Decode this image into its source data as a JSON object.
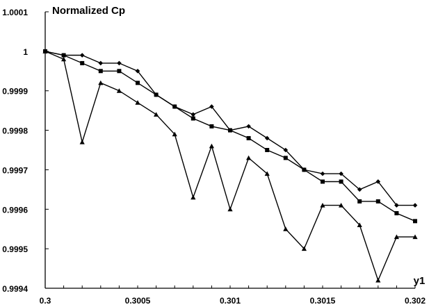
{
  "chart_data": {
    "type": "line",
    "title": "Normalized Cp",
    "xlabel": "y1",
    "ylabel": "",
    "xlim": [
      0.3,
      0.302
    ],
    "ylim": [
      0.9994,
      1.0001
    ],
    "x_ticks": [
      "0.3",
      "0.3005",
      "0.301",
      "0.3015",
      "0.302"
    ],
    "y_ticks": [
      "0.9994",
      "0.9995",
      "0.9996",
      "0.9997",
      "0.9998",
      "0.9999",
      "1",
      "1.0001"
    ],
    "grid": false,
    "legend": "none",
    "x": [
      0.3,
      0.3001,
      0.3002,
      0.3003,
      0.3004,
      0.3005,
      0.3006,
      0.3007,
      0.3008,
      0.3009,
      0.301,
      0.3011,
      0.3012,
      0.3013,
      0.3014,
      0.3015,
      0.3016,
      0.3017,
      0.3018,
      0.3019,
      0.302
    ],
    "series": [
      {
        "marker": "diamond",
        "values": [
          1.0,
          0.99999,
          0.99999,
          0.99997,
          0.99997,
          0.99995,
          0.99989,
          0.99986,
          0.99984,
          0.99986,
          0.9998,
          0.99981,
          0.99978,
          0.99975,
          0.9997,
          0.99969,
          0.99969,
          0.99965,
          0.99967,
          0.99961,
          0.99961
        ]
      },
      {
        "marker": "square",
        "values": [
          1.0,
          0.99999,
          0.99997,
          0.99995,
          0.99995,
          0.99992,
          0.99989,
          0.99986,
          0.99983,
          0.99981,
          0.9998,
          0.99978,
          0.99975,
          0.99973,
          0.9997,
          0.99967,
          0.99967,
          0.99962,
          0.99962,
          0.99959,
          0.99957
        ]
      },
      {
        "marker": "triangle",
        "values": [
          1.0,
          0.99998,
          0.99977,
          0.99992,
          0.9999,
          0.99987,
          0.99984,
          0.99979,
          0.99963,
          0.99976,
          0.9996,
          0.99973,
          0.99969,
          0.99955,
          0.9995,
          0.99961,
          0.99961,
          0.99956,
          0.99942,
          0.99953,
          0.99953
        ]
      }
    ]
  }
}
